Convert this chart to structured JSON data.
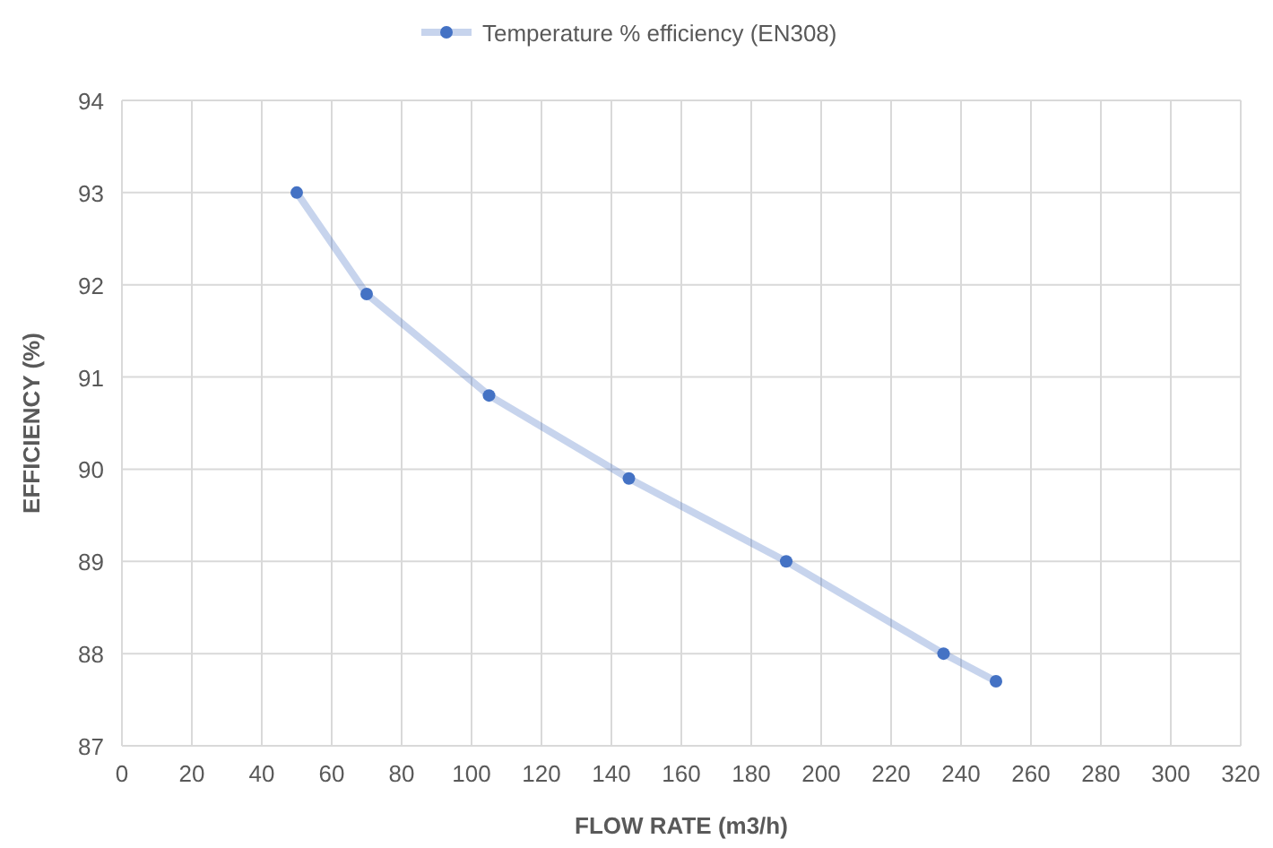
{
  "chart_data": {
    "type": "line",
    "xlabel": "FLOW RATE (m3/h)",
    "ylabel": "EFFICIENCY (%)",
    "x": [
      50,
      70,
      105,
      145,
      190,
      235,
      250
    ],
    "series": [
      {
        "name": "Temperature % efficiency (EN308)",
        "color": "#4472c4",
        "values": [
          93.0,
          91.9,
          90.8,
          89.9,
          89.0,
          88.0,
          87.7
        ]
      }
    ],
    "xlim": [
      0,
      320
    ],
    "xticks": [
      0,
      20,
      40,
      60,
      80,
      100,
      120,
      140,
      160,
      180,
      200,
      220,
      240,
      260,
      280,
      300,
      320
    ],
    "ylim": [
      87,
      94
    ],
    "yticks": [
      87,
      88,
      89,
      90,
      91,
      92,
      93,
      94
    ],
    "grid": true,
    "legend": "top",
    "marker": "circle"
  }
}
